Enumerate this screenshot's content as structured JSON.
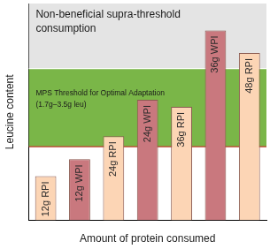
{
  "chart_data": {
    "type": "bar",
    "categories": [
      "12g RPI",
      "12g WPI",
      "24g RPI",
      "24g WPI",
      "36g RPI",
      "36g WPI",
      "48g RPI"
    ],
    "values": [
      1.02,
      1.41,
      1.94,
      2.78,
      2.62,
      4.38,
      3.86
    ],
    "colors": [
      "#fcd5b5",
      "#c9787e",
      "#fcd5b5",
      "#c9787e",
      "#fcd5b5",
      "#c9787e",
      "#fcd5b5"
    ],
    "x_label": "Amount of protein consumed",
    "y_label": "Leucine content",
    "ylim": [
      0,
      5
    ],
    "tick_labels": false,
    "grid": false,
    "legend": false,
    "bands": [
      {
        "label": "MPS Threshold for Optimal Adaptation (1.7g–3.5g leu)",
        "range": [
          1.7,
          3.5
        ],
        "color": "#7ab648"
      },
      {
        "label": "Non-beneficial supra-threshold consumption",
        "range": [
          3.5,
          5
        ],
        "color": "#e4e4e4"
      }
    ]
  }
}
